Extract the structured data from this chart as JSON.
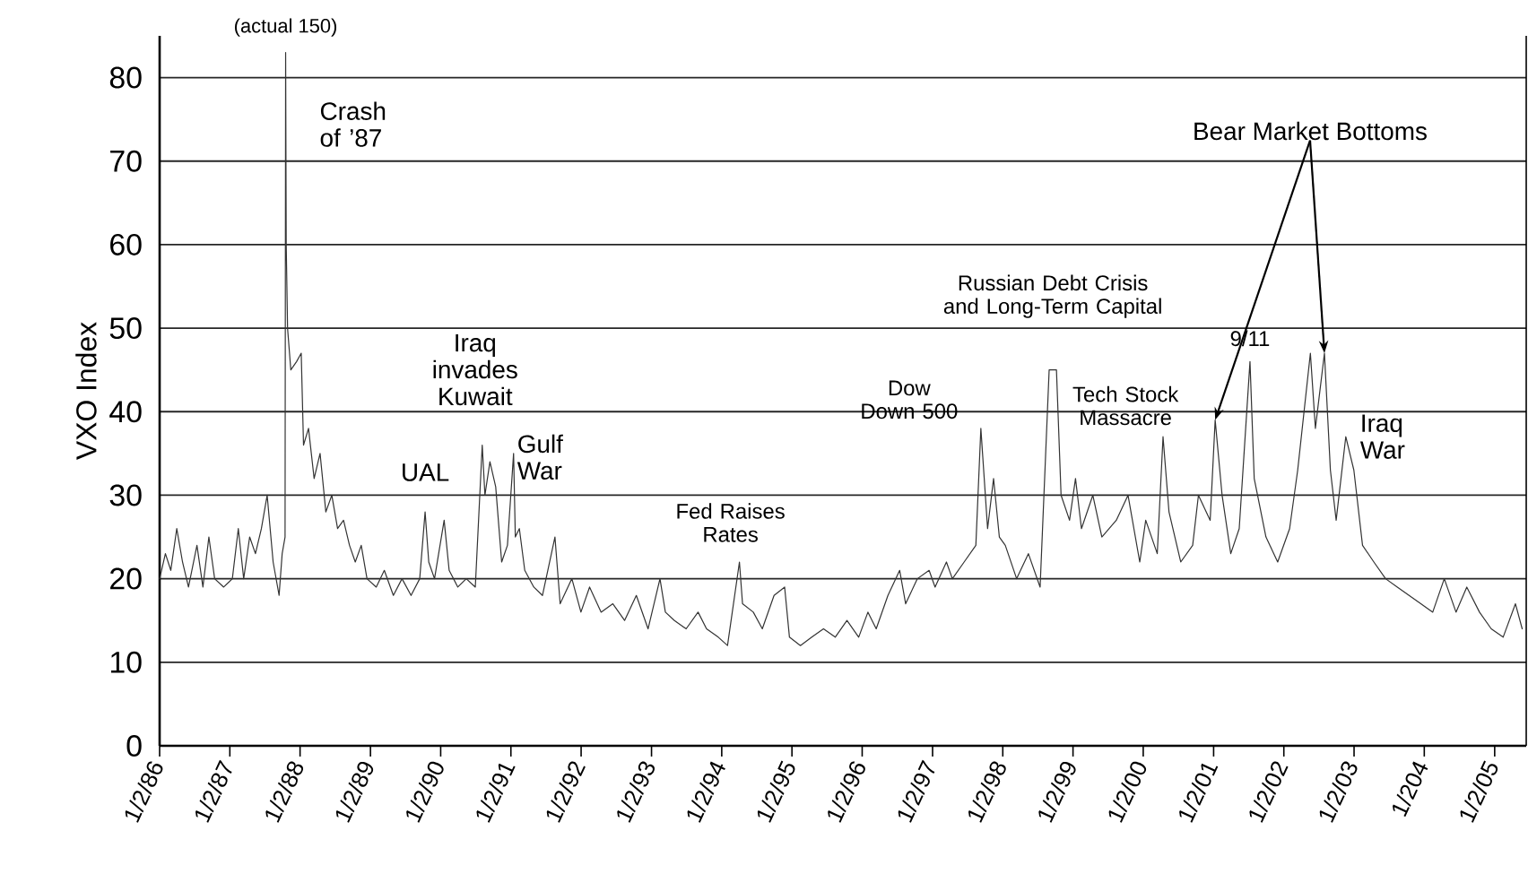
{
  "chart_data": {
    "type": "line",
    "ylabel": "VXO Index",
    "color": "#333333",
    "line_style": "solid",
    "marker": "none",
    "grid": "y",
    "xlim": [
      "1986-01-02",
      "2005-06-15"
    ],
    "ylim": [
      0,
      85
    ],
    "yticks": [
      0,
      10,
      20,
      30,
      40,
      50,
      60,
      70,
      80
    ],
    "xticks": [
      {
        "value": "1986-01-02",
        "label": "1/2/86"
      },
      {
        "value": "1987-01-02",
        "label": "1/2/87"
      },
      {
        "value": "1988-01-02",
        "label": "1/2/88"
      },
      {
        "value": "1989-01-02",
        "label": "1/2/89"
      },
      {
        "value": "1990-01-02",
        "label": "1/2/90"
      },
      {
        "value": "1991-01-02",
        "label": "1/2/91"
      },
      {
        "value": "1992-01-02",
        "label": "1/2/92"
      },
      {
        "value": "1993-01-02",
        "label": "1/2/93"
      },
      {
        "value": "1994-01-02",
        "label": "1/2/94"
      },
      {
        "value": "1995-01-02",
        "label": "1/2/95"
      },
      {
        "value": "1996-01-02",
        "label": "1/2/96"
      },
      {
        "value": "1997-01-02",
        "label": "1/2/97"
      },
      {
        "value": "1998-01-02",
        "label": "1/2/98"
      },
      {
        "value": "1999-01-02",
        "label": "1/2/99"
      },
      {
        "value": "2000-01-02",
        "label": "1/2/00"
      },
      {
        "value": "2001-01-02",
        "label": "1/2/01"
      },
      {
        "value": "2002-01-02",
        "label": "1/2/02"
      },
      {
        "value": "2003-01-02",
        "label": "1/2/03"
      },
      {
        "value": "2004-01-02",
        "label": "1/204"
      },
      {
        "value": "2005-01-02",
        "label": "1/2/05"
      }
    ],
    "x": [
      "1986-01-02",
      "1986-02-01",
      "1986-03-01",
      "1986-04-01",
      "1986-05-01",
      "1986-06-01",
      "1986-07-15",
      "1986-08-15",
      "1986-09-15",
      "1986-10-15",
      "1986-12-01",
      "1987-01-15",
      "1987-02-15",
      "1987-03-15",
      "1987-04-15",
      "1987-05-15",
      "1987-06-15",
      "1987-07-15",
      "1987-08-15",
      "1987-09-15",
      "1987-10-01",
      "1987-10-16",
      "1987-10-19",
      "1987-10-22",
      "1987-10-29",
      "1987-11-15",
      "1987-12-15",
      "1988-01-08",
      "1988-01-20",
      "1988-02-15",
      "1988-03-15",
      "1988-04-15",
      "1988-05-15",
      "1988-06-15",
      "1988-07-15",
      "1988-08-15",
      "1988-09-15",
      "1988-10-15",
      "1988-11-15",
      "1988-12-15",
      "1989-02-01",
      "1989-03-15",
      "1989-05-01",
      "1989-06-15",
      "1989-08-01",
      "1989-09-15",
      "1989-10-13",
      "1989-11-01",
      "1989-12-01",
      "1990-01-20",
      "1990-02-15",
      "1990-04-01",
      "1990-05-15",
      "1990-07-01",
      "1990-08-06",
      "1990-08-20",
      "1990-09-15",
      "1990-10-15",
      "1990-11-15",
      "1990-12-15",
      "1991-01-16",
      "1991-01-25",
      "1991-02-15",
      "1991-03-15",
      "1991-05-01",
      "1991-06-15",
      "1991-08-19",
      "1991-09-15",
      "1991-11-15",
      "1992-01-01",
      "1992-02-15",
      "1992-04-15",
      "1992-06-15",
      "1992-08-15",
      "1992-10-15",
      "1992-12-15",
      "1993-02-15",
      "1993-03-15",
      "1993-05-01",
      "1993-07-01",
      "1993-09-01",
      "1993-10-15",
      "1993-12-15",
      "1994-02-01",
      "1994-04-04",
      "1994-04-20",
      "1994-06-15",
      "1994-08-01",
      "1994-10-01",
      "1994-11-25",
      "1994-12-20",
      "1995-02-15",
      "1995-04-15",
      "1995-06-15",
      "1995-08-15",
      "1995-10-15",
      "1995-12-15",
      "1996-02-01",
      "1996-03-15",
      "1996-05-15",
      "1996-07-15",
      "1996-08-15",
      "1996-10-15",
      "1996-12-15",
      "1997-01-15",
      "1997-03-15",
      "1997-04-15",
      "1997-06-15",
      "1997-08-15",
      "1997-09-10",
      "1997-10-15",
      "1997-11-15",
      "1997-12-15",
      "1998-01-15",
      "1998-03-15",
      "1998-05-15",
      "1998-07-15",
      "1998-08-31",
      "1998-10-08",
      "1998-11-01",
      "1998-12-15",
      "1999-01-15",
      "1999-02-15",
      "1999-04-15",
      "1999-06-01",
      "1999-08-15",
      "1999-10-15",
      "1999-12-15",
      "2000-01-15",
      "2000-03-15",
      "2000-04-14",
      "2000-05-15",
      "2000-07-15",
      "2000-09-15",
      "2000-10-15",
      "2000-12-15",
      "2001-01-10",
      "2001-02-15",
      "2001-04-01",
      "2001-05-15",
      "2001-07-10",
      "2001-08-01",
      "2001-10-01",
      "2001-12-01",
      "2002-02-01",
      "2002-03-15",
      "2002-05-20",
      "2002-06-15",
      "2002-08-01",
      "2002-09-01",
      "2002-10-01",
      "2002-11-20",
      "2003-01-01",
      "2003-02-15",
      "2003-04-15",
      "2003-06-15",
      "2003-08-15",
      "2003-10-15",
      "2003-12-15",
      "2004-02-15",
      "2004-04-15",
      "2004-06-15",
      "2004-08-10",
      "2004-10-15",
      "2004-12-15",
      "2005-02-15",
      "2005-04-20",
      "2005-05-25"
    ],
    "values": [
      20,
      23,
      21,
      26,
      22,
      19,
      24,
      19,
      25,
      20,
      19,
      20,
      26,
      20,
      25,
      23,
      26,
      30,
      22,
      18,
      23,
      25,
      83,
      60,
      50,
      45,
      46,
      47,
      36,
      38,
      32,
      35,
      28,
      30,
      26,
      27,
      24,
      22,
      24,
      20,
      19,
      21,
      18,
      20,
      18,
      20,
      28,
      22,
      20,
      27,
      21,
      19,
      20,
      19,
      36,
      30,
      34,
      31,
      22,
      24,
      35,
      25,
      26,
      21,
      19,
      18,
      25,
      17,
      20,
      16,
      19,
      16,
      17,
      15,
      18,
      14,
      20,
      16,
      15,
      14,
      16,
      14,
      13,
      12,
      22,
      17,
      16,
      14,
      18,
      19,
      13,
      12,
      13,
      14,
      13,
      15,
      13,
      16,
      14,
      18,
      21,
      17,
      20,
      21,
      19,
      22,
      20,
      22,
      24,
      38,
      26,
      32,
      25,
      24,
      20,
      23,
      19,
      45,
      45,
      30,
      27,
      32,
      26,
      30,
      25,
      27,
      30,
      22,
      27,
      23,
      37,
      28,
      22,
      24,
      30,
      27,
      39,
      30,
      23,
      26,
      46,
      32,
      25,
      22,
      26,
      33,
      47,
      38,
      47,
      33,
      27,
      37,
      33,
      24,
      22,
      20,
      19,
      18,
      17,
      16,
      20,
      16,
      19,
      16,
      14,
      13,
      17,
      14
    ],
    "annotations": [
      {
        "text": "(actual 150)",
        "x": "1987-10-19",
        "y": 83
      },
      {
        "text": "Crash of ’87",
        "x": "1987-10-19",
        "y": 83
      },
      {
        "text": "UAL",
        "x": "1989-10-13",
        "y": 28
      },
      {
        "text": "Iraq invades Kuwait",
        "x": "1990-08-06",
        "y": 36
      },
      {
        "text": "Gulf War",
        "x": "1991-01-16",
        "y": 35
      },
      {
        "text": "Fed Raises Rates",
        "x": "1994-04-04",
        "y": 22
      },
      {
        "text": "Dow Down 500",
        "x": "1997-09-10",
        "y": 38
      },
      {
        "text": "Russian Debt Crisis and Long-Term Capital",
        "x": "1998-10-08",
        "y": 45
      },
      {
        "text": "Tech Stock Massacre",
        "x": "2001-01-10",
        "y": 39
      },
      {
        "text": "9/11",
        "x": "2001-07-10",
        "y": 46
      },
      {
        "text": "Bear Market Bottoms",
        "x": "2002-08-01",
        "y": 47
      },
      {
        "text": "Iraq War",
        "x": "2002-11-20",
        "y": 37
      }
    ]
  }
}
